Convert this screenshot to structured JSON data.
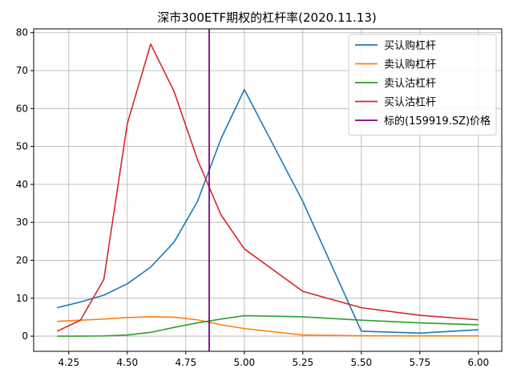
{
  "chart_data": {
    "type": "line",
    "title": "深市300ETF期权的杠杆率(2020.11.13)",
    "xlabel": "",
    "ylabel": "",
    "xlim": [
      4.1,
      6.1
    ],
    "ylim": [
      -4,
      81
    ],
    "xticks": [
      4.25,
      4.5,
      4.75,
      5.0,
      5.25,
      5.5,
      5.75,
      6.0
    ],
    "xtick_labels": [
      "4.25",
      "4.50",
      "4.75",
      "5.00",
      "5.25",
      "5.50",
      "5.75",
      "6.00"
    ],
    "yticks": [
      0,
      10,
      20,
      30,
      40,
      50,
      60,
      70,
      80
    ],
    "ytick_labels": [
      "0",
      "10",
      "20",
      "30",
      "40",
      "50",
      "60",
      "70",
      "80"
    ],
    "grid": true,
    "legend_position": "top-right",
    "series": [
      {
        "name": "买认购杠杆",
        "color": "#1f77b4",
        "x": [
          4.2,
          4.3,
          4.4,
          4.5,
          4.6,
          4.7,
          4.8,
          4.9,
          5.0,
          5.25,
          5.5,
          5.75,
          6.0
        ],
        "y": [
          7.5,
          9.0,
          10.8,
          13.8,
          18.2,
          24.8,
          35.5,
          52.0,
          65.0,
          35.5,
          1.3,
          0.8,
          1.7
        ]
      },
      {
        "name": "卖认购杠杆",
        "color": "#ff7f0e",
        "x": [
          4.2,
          4.3,
          4.4,
          4.5,
          4.6,
          4.7,
          4.8,
          4.9,
          5.0,
          5.25,
          5.5,
          5.75,
          6.0
        ],
        "y": [
          3.9,
          4.2,
          4.5,
          4.9,
          5.1,
          5.0,
          4.3,
          3.0,
          2.0,
          0.3,
          0.1,
          0.05,
          0.05
        ]
      },
      {
        "name": "卖认沽杠杆",
        "color": "#2ca02c",
        "x": [
          4.2,
          4.3,
          4.4,
          4.5,
          4.6,
          4.7,
          4.8,
          4.9,
          5.0,
          5.25,
          5.5,
          5.75,
          6.0
        ],
        "y": [
          0.0,
          0.0,
          0.05,
          0.3,
          1.0,
          2.3,
          3.5,
          4.5,
          5.4,
          5.1,
          4.2,
          3.5,
          3.0
        ]
      },
      {
        "name": "买认沽杠杆",
        "color": "#d62728",
        "x": [
          4.2,
          4.3,
          4.4,
          4.5,
          4.6,
          4.7,
          4.8,
          4.9,
          5.0,
          5.25,
          5.5,
          5.75,
          6.0
        ],
        "y": [
          1.3,
          4.2,
          15.0,
          56.0,
          77.0,
          64.5,
          46.5,
          32.0,
          23.0,
          11.8,
          7.5,
          5.5,
          4.3
        ]
      }
    ],
    "vertical_lines": [
      {
        "name": "标的(159919.SZ)价格",
        "x": 4.85,
        "color": "#800080"
      }
    ]
  }
}
